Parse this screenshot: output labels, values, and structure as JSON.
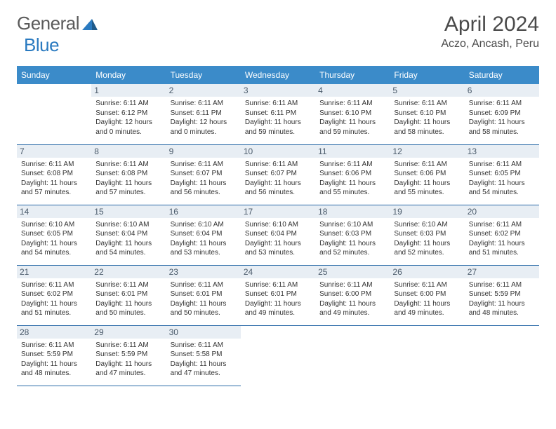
{
  "logo": {
    "word1": "General",
    "word2": "Blue"
  },
  "title": "April 2024",
  "location": "Aczo, Ancash, Peru",
  "colors": {
    "header_bg": "#3b8bc9",
    "header_text": "#ffffff",
    "daynum_bg": "#e8eef4",
    "daynum_text": "#4a5a6a",
    "body_text": "#333333",
    "rule": "#2a6aa8",
    "logo_gray": "#5a5a5a",
    "logo_blue": "#2a7ac0"
  },
  "weekdays": [
    "Sunday",
    "Monday",
    "Tuesday",
    "Wednesday",
    "Thursday",
    "Friday",
    "Saturday"
  ],
  "days": [
    {
      "n": "1",
      "sr": "6:11 AM",
      "ss": "6:12 PM",
      "dl": "12 hours and 0 minutes."
    },
    {
      "n": "2",
      "sr": "6:11 AM",
      "ss": "6:11 PM",
      "dl": "12 hours and 0 minutes."
    },
    {
      "n": "3",
      "sr": "6:11 AM",
      "ss": "6:11 PM",
      "dl": "11 hours and 59 minutes."
    },
    {
      "n": "4",
      "sr": "6:11 AM",
      "ss": "6:10 PM",
      "dl": "11 hours and 59 minutes."
    },
    {
      "n": "5",
      "sr": "6:11 AM",
      "ss": "6:10 PM",
      "dl": "11 hours and 58 minutes."
    },
    {
      "n": "6",
      "sr": "6:11 AM",
      "ss": "6:09 PM",
      "dl": "11 hours and 58 minutes."
    },
    {
      "n": "7",
      "sr": "6:11 AM",
      "ss": "6:08 PM",
      "dl": "11 hours and 57 minutes."
    },
    {
      "n": "8",
      "sr": "6:11 AM",
      "ss": "6:08 PM",
      "dl": "11 hours and 57 minutes."
    },
    {
      "n": "9",
      "sr": "6:11 AM",
      "ss": "6:07 PM",
      "dl": "11 hours and 56 minutes."
    },
    {
      "n": "10",
      "sr": "6:11 AM",
      "ss": "6:07 PM",
      "dl": "11 hours and 56 minutes."
    },
    {
      "n": "11",
      "sr": "6:11 AM",
      "ss": "6:06 PM",
      "dl": "11 hours and 55 minutes."
    },
    {
      "n": "12",
      "sr": "6:11 AM",
      "ss": "6:06 PM",
      "dl": "11 hours and 55 minutes."
    },
    {
      "n": "13",
      "sr": "6:11 AM",
      "ss": "6:05 PM",
      "dl": "11 hours and 54 minutes."
    },
    {
      "n": "14",
      "sr": "6:10 AM",
      "ss": "6:05 PM",
      "dl": "11 hours and 54 minutes."
    },
    {
      "n": "15",
      "sr": "6:10 AM",
      "ss": "6:04 PM",
      "dl": "11 hours and 54 minutes."
    },
    {
      "n": "16",
      "sr": "6:10 AM",
      "ss": "6:04 PM",
      "dl": "11 hours and 53 minutes."
    },
    {
      "n": "17",
      "sr": "6:10 AM",
      "ss": "6:04 PM",
      "dl": "11 hours and 53 minutes."
    },
    {
      "n": "18",
      "sr": "6:10 AM",
      "ss": "6:03 PM",
      "dl": "11 hours and 52 minutes."
    },
    {
      "n": "19",
      "sr": "6:10 AM",
      "ss": "6:03 PM",
      "dl": "11 hours and 52 minutes."
    },
    {
      "n": "20",
      "sr": "6:11 AM",
      "ss": "6:02 PM",
      "dl": "11 hours and 51 minutes."
    },
    {
      "n": "21",
      "sr": "6:11 AM",
      "ss": "6:02 PM",
      "dl": "11 hours and 51 minutes."
    },
    {
      "n": "22",
      "sr": "6:11 AM",
      "ss": "6:01 PM",
      "dl": "11 hours and 50 minutes."
    },
    {
      "n": "23",
      "sr": "6:11 AM",
      "ss": "6:01 PM",
      "dl": "11 hours and 50 minutes."
    },
    {
      "n": "24",
      "sr": "6:11 AM",
      "ss": "6:01 PM",
      "dl": "11 hours and 49 minutes."
    },
    {
      "n": "25",
      "sr": "6:11 AM",
      "ss": "6:00 PM",
      "dl": "11 hours and 49 minutes."
    },
    {
      "n": "26",
      "sr": "6:11 AM",
      "ss": "6:00 PM",
      "dl": "11 hours and 49 minutes."
    },
    {
      "n": "27",
      "sr": "6:11 AM",
      "ss": "5:59 PM",
      "dl": "11 hours and 48 minutes."
    },
    {
      "n": "28",
      "sr": "6:11 AM",
      "ss": "5:59 PM",
      "dl": "11 hours and 48 minutes."
    },
    {
      "n": "29",
      "sr": "6:11 AM",
      "ss": "5:59 PM",
      "dl": "11 hours and 47 minutes."
    },
    {
      "n": "30",
      "sr": "6:11 AM",
      "ss": "5:58 PM",
      "dl": "11 hours and 47 minutes."
    }
  ],
  "labels": {
    "sunrise": "Sunrise:",
    "sunset": "Sunset:",
    "daylight": "Daylight:"
  },
  "start_weekday": 1
}
